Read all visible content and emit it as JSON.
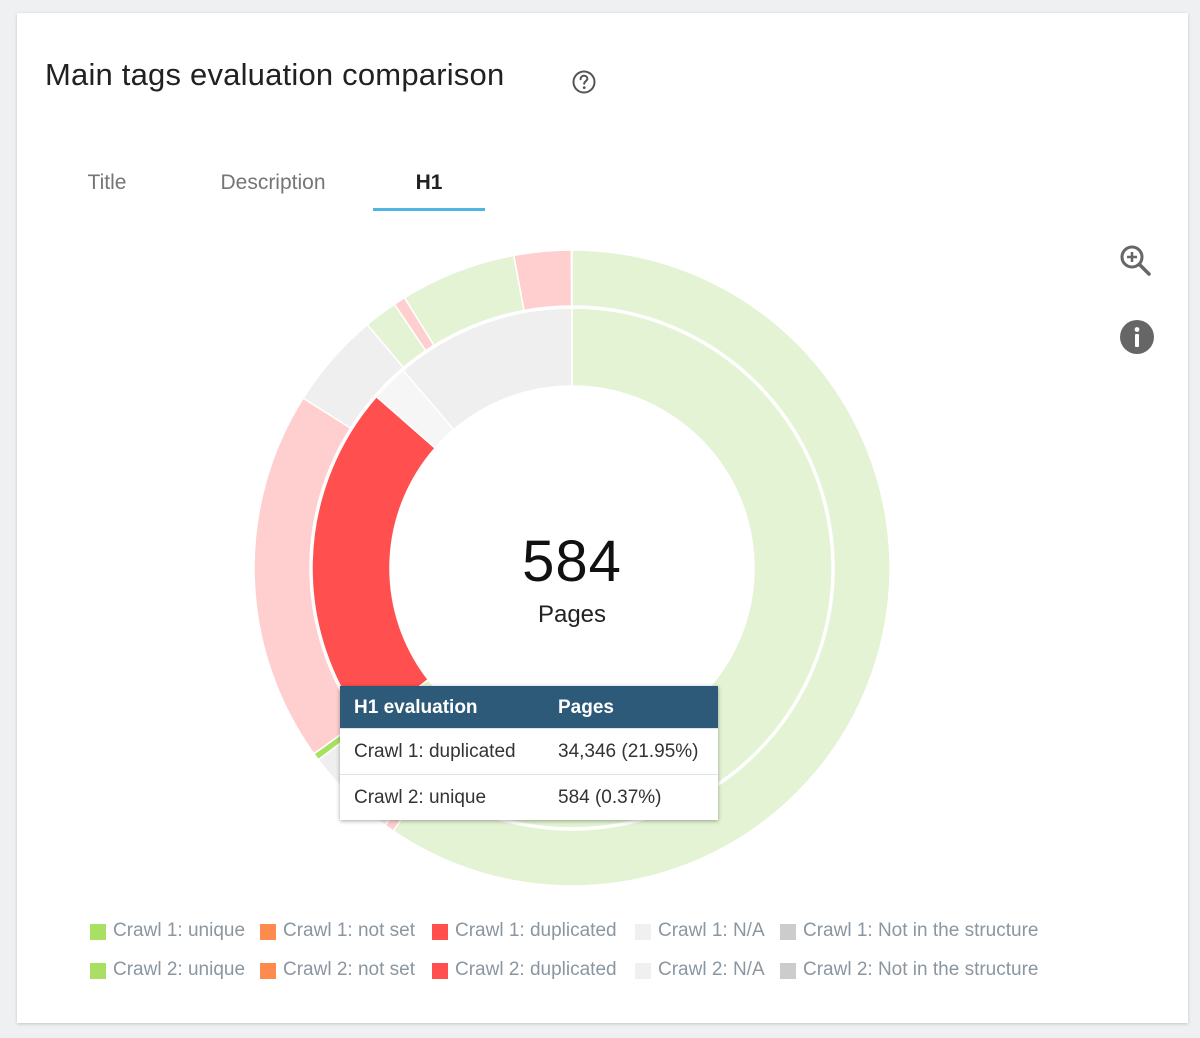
{
  "header": {
    "title": "Main tags evaluation comparison",
    "help_icon": "question-circle-icon"
  },
  "tabs": [
    {
      "label": "Title",
      "active": false
    },
    {
      "label": "Description",
      "active": false
    },
    {
      "label": "H1",
      "active": true
    }
  ],
  "toolbar": {
    "zoom_icon": "zoom-in-icon",
    "info_icon": "info-circle-icon"
  },
  "center": {
    "value": "584",
    "label": "Pages"
  },
  "tooltip": {
    "headers": [
      "H1 evaluation",
      "Pages"
    ],
    "rows": [
      [
        "Crawl 1: duplicated",
        "34,346 (21.95%)"
      ],
      [
        "Crawl 2: unique",
        "584 (0.37%)"
      ]
    ]
  },
  "legend": [
    [
      {
        "label": "Crawl 1: unique",
        "color": "#a8e063"
      },
      {
        "label": "Crawl 1: not set",
        "color": "#ff8a4d"
      },
      {
        "label": "Crawl 1: duplicated",
        "color": "#ff4f4f"
      },
      {
        "label": "Crawl 1: N/A",
        "color": "#f0f0f0"
      },
      {
        "label": "Crawl 1: Not in the structure",
        "color": "#cccccc"
      }
    ],
    [
      {
        "label": "Crawl 2: unique",
        "color": "#a8e063"
      },
      {
        "label": "Crawl 2: not set",
        "color": "#ff8a4d"
      },
      {
        "label": "Crawl 2: duplicated",
        "color": "#ff4f4f"
      },
      {
        "label": "Crawl 2: N/A",
        "color": "#f0f0f0"
      },
      {
        "label": "Crawl 2: Not in the structure",
        "color": "#cccccc"
      }
    ]
  ],
  "chart_data": {
    "type": "pie",
    "variant": "nested-donut",
    "center_value": 584,
    "center_label": "Pages",
    "highlighted": [
      "Crawl 1: duplicated",
      "Crawl 2: unique"
    ],
    "rings": [
      {
        "name": "Crawl 1",
        "slices": [
          {
            "label": "Crawl 1: unique",
            "percent": 64.5,
            "color": "#e4f3d3"
          },
          {
            "label": "Crawl 1: duplicated",
            "percent": 21.95,
            "color": "#ff4f4f"
          },
          {
            "label": "Crawl 1: N/A",
            "percent": 2.3,
            "color": "#f6f6f6"
          },
          {
            "label": "Crawl 1: Not in the structure",
            "percent": 11.25,
            "color": "#efefef"
          }
        ]
      },
      {
        "name": "Crawl 2",
        "slices": [
          {
            "label": "Crawl 2: unique",
            "percent": 59.5,
            "color": "#e4f3d3"
          },
          {
            "label": "Crawl 2: duplicated",
            "percent": 0.5,
            "color": "#ffcfcf"
          },
          {
            "label": "Crawl 2: Not in the structure",
            "percent": 4.7,
            "color": "#efefef"
          },
          {
            "label": "Crawl 2: unique",
            "percent": 0.37,
            "color": "#a8e063"
          },
          {
            "label": "Crawl 2: duplicated",
            "percent": 18.9,
            "color": "#ffcfcf"
          },
          {
            "label": "Crawl 2: Not in the structure",
            "percent": 4.9,
            "color": "#efefef"
          },
          {
            "label": "Crawl 2: unique",
            "percent": 1.7,
            "color": "#e4f3d3"
          },
          {
            "label": "Crawl 2: duplicated",
            "percent": 0.6,
            "color": "#ffcfcf"
          },
          {
            "label": "Crawl 2: unique",
            "percent": 5.9,
            "color": "#e4f3d3"
          },
          {
            "label": "Crawl 2: duplicated",
            "percent": 2.9,
            "color": "#ffcfcf"
          }
        ]
      }
    ]
  }
}
